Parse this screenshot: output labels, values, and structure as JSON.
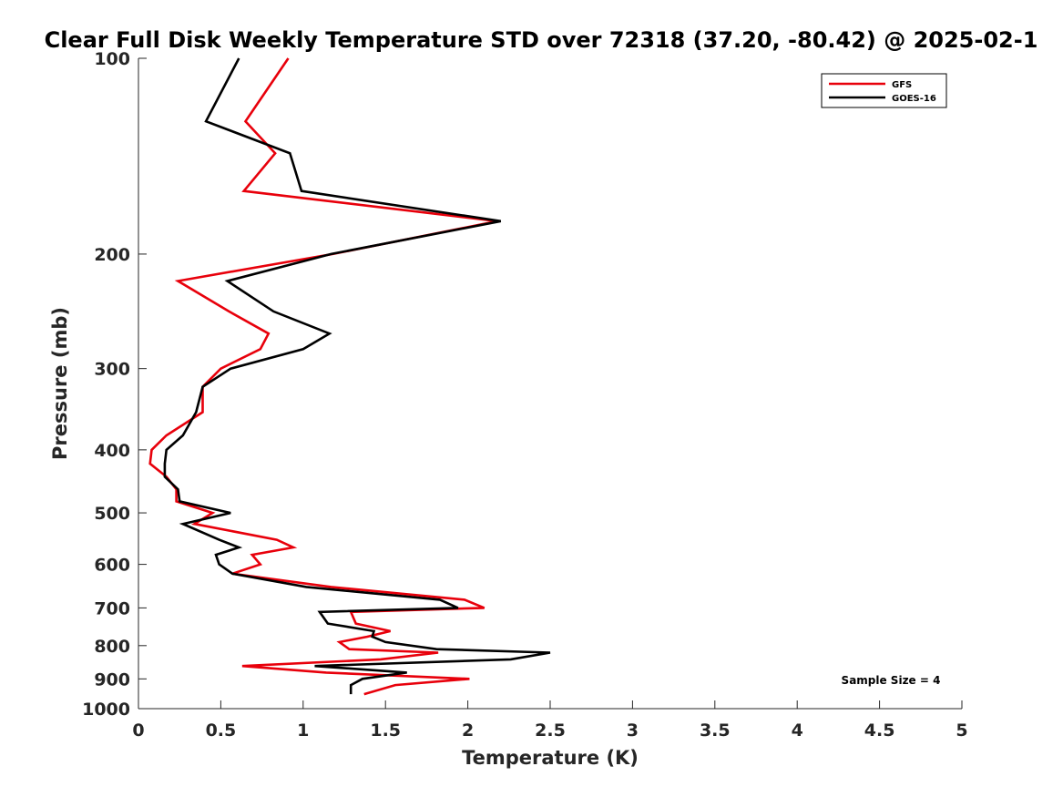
{
  "chart_data": {
    "type": "line",
    "title": "Clear Full Disk Weekly Temperature STD over 72318 (37.20, -80.42) @ 2025-02-1",
    "xlabel": "Temperature (K)",
    "ylabel": "Pressure (mb)",
    "xlim": [
      0,
      5
    ],
    "ylim": [
      100,
      1000
    ],
    "y_scale": "log",
    "y_reversed": true,
    "x_ticks": [
      "0",
      "0.5",
      "1",
      "1.5",
      "2",
      "2.5",
      "3",
      "3.5",
      "4",
      "4.5",
      "5"
    ],
    "y_ticks": [
      "100",
      "200",
      "300",
      "400",
      "500",
      "600",
      "700",
      "800",
      "900",
      "1000"
    ],
    "grid": false,
    "legend_position": "top-right",
    "annotation": "Sample Size = 4",
    "series": [
      {
        "name": "GFS",
        "color": "#e8000b",
        "points": [
          [
            0.91,
            100
          ],
          [
            0.65,
            125
          ],
          [
            0.83,
            140
          ],
          [
            0.64,
            160
          ],
          [
            2.18,
            178
          ],
          [
            1.18,
            200
          ],
          [
            0.24,
            220
          ],
          [
            0.55,
            245
          ],
          [
            0.79,
            265
          ],
          [
            0.74,
            280
          ],
          [
            0.5,
            300
          ],
          [
            0.39,
            320
          ],
          [
            0.39,
            350
          ],
          [
            0.17,
            380
          ],
          [
            0.08,
            400
          ],
          [
            0.07,
            420
          ],
          [
            0.17,
            440
          ],
          [
            0.23,
            460
          ],
          [
            0.23,
            480
          ],
          [
            0.45,
            500
          ],
          [
            0.34,
            520
          ],
          [
            0.84,
            550
          ],
          [
            0.94,
            565
          ],
          [
            0.69,
            580
          ],
          [
            0.74,
            600
          ],
          [
            0.57,
            620
          ],
          [
            1.17,
            650
          ],
          [
            1.98,
            680
          ],
          [
            2.1,
            700
          ],
          [
            1.29,
            710
          ],
          [
            1.32,
            740
          ],
          [
            1.53,
            760
          ],
          [
            1.39,
            775
          ],
          [
            1.22,
            790
          ],
          [
            1.28,
            810
          ],
          [
            1.82,
            820
          ],
          [
            1.47,
            840
          ],
          [
            0.63,
            860
          ],
          [
            1.14,
            880
          ],
          [
            2.01,
            900
          ],
          [
            1.56,
            920
          ],
          [
            1.37,
            950
          ]
        ]
      },
      {
        "name": "GOES-16",
        "color": "#000000",
        "points": [
          [
            0.61,
            100
          ],
          [
            0.41,
            125
          ],
          [
            0.92,
            140
          ],
          [
            0.99,
            160
          ],
          [
            2.2,
            178
          ],
          [
            1.17,
            200
          ],
          [
            0.54,
            220
          ],
          [
            0.82,
            245
          ],
          [
            1.16,
            265
          ],
          [
            1.0,
            280
          ],
          [
            0.56,
            300
          ],
          [
            0.39,
            320
          ],
          [
            0.35,
            350
          ],
          [
            0.27,
            380
          ],
          [
            0.17,
            400
          ],
          [
            0.16,
            420
          ],
          [
            0.16,
            440
          ],
          [
            0.24,
            460
          ],
          [
            0.25,
            480
          ],
          [
            0.56,
            500
          ],
          [
            0.27,
            520
          ],
          [
            0.49,
            550
          ],
          [
            0.61,
            565
          ],
          [
            0.47,
            580
          ],
          [
            0.49,
            600
          ],
          [
            0.57,
            620
          ],
          [
            1.02,
            650
          ],
          [
            1.83,
            680
          ],
          [
            1.94,
            700
          ],
          [
            1.1,
            710
          ],
          [
            1.15,
            740
          ],
          [
            1.43,
            760
          ],
          [
            1.42,
            775
          ],
          [
            1.5,
            790
          ],
          [
            1.81,
            810
          ],
          [
            2.5,
            820
          ],
          [
            2.26,
            840
          ],
          [
            1.07,
            860
          ],
          [
            1.63,
            880
          ],
          [
            1.36,
            900
          ],
          [
            1.29,
            920
          ],
          [
            1.29,
            950
          ]
        ]
      }
    ]
  }
}
